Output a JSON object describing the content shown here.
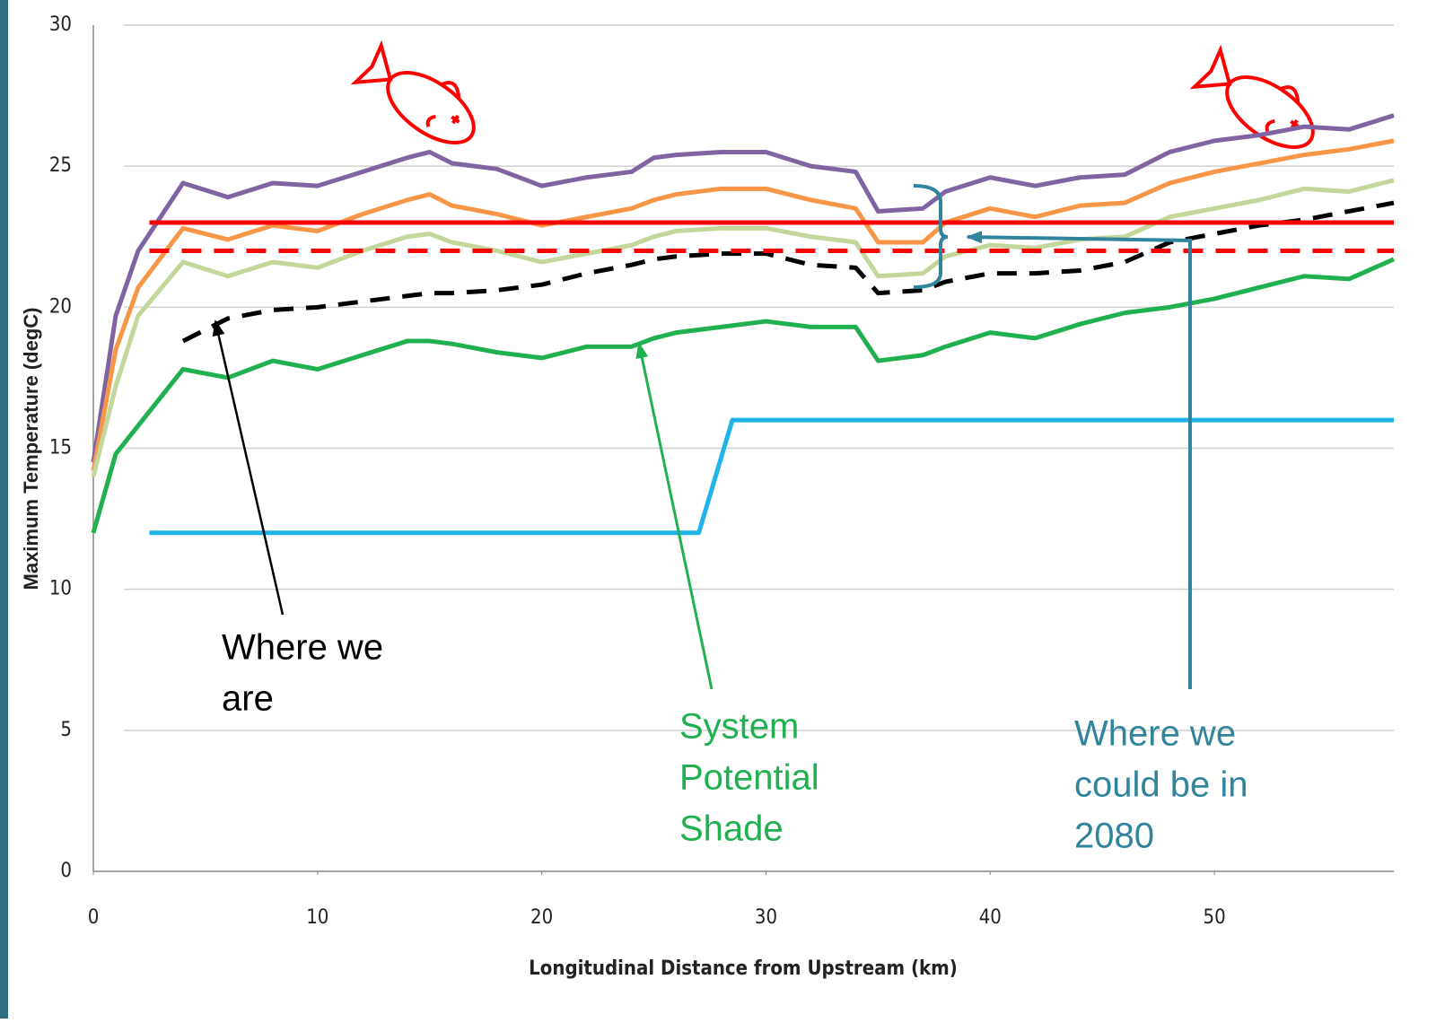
{
  "chart_data": {
    "type": "line",
    "x_label": "Longitudinal Distance from Upstream (km)",
    "y_label": "Maximum Temperature (degC)",
    "x": [
      0,
      1,
      2,
      4,
      6,
      8,
      10,
      12,
      14,
      15,
      16,
      18,
      20,
      22,
      24,
      25,
      26,
      28,
      30,
      32,
      34,
      35,
      37,
      38,
      40,
      42,
      44,
      46,
      48,
      50,
      52,
      54,
      56,
      58
    ],
    "series": [
      {
        "color": "#8064a2",
        "values": [
          14.5,
          19.7,
          22,
          24.4,
          23.9,
          24.4,
          24.3,
          24.8,
          25.3,
          25.5,
          25.1,
          24.9,
          24.3,
          24.6,
          24.8,
          25.3,
          25.4,
          25.5,
          25.5,
          25.0,
          24.8,
          23.4,
          23.5,
          24.1,
          24.6,
          24.3,
          24.6,
          24.7,
          25.5,
          25.9,
          26.1,
          26.4,
          26.3,
          26.8
        ]
      },
      {
        "color": "#f79646",
        "values": [
          14.2,
          18.5,
          20.7,
          22.8,
          22.4,
          22.9,
          22.7,
          23.3,
          23.8,
          24.0,
          23.6,
          23.3,
          22.9,
          23.2,
          23.5,
          23.8,
          24.0,
          24.2,
          24.2,
          23.8,
          23.5,
          22.3,
          22.3,
          23.0,
          23.5,
          23.2,
          23.6,
          23.7,
          24.4,
          24.8,
          25.1,
          25.4,
          25.6,
          25.9
        ]
      },
      {
        "color": "#c3d69b",
        "values": [
          14.0,
          17.2,
          19.7,
          21.6,
          21.1,
          21.6,
          21.4,
          22.0,
          22.5,
          22.6,
          22.3,
          22.0,
          21.6,
          21.9,
          22.2,
          22.5,
          22.7,
          22.8,
          22.8,
          22.5,
          22.3,
          21.1,
          21.2,
          21.8,
          22.2,
          22.1,
          22.4,
          22.5,
          23.2,
          23.5,
          23.8,
          24.2,
          24.1,
          24.5
        ]
      },
      {
        "color": "#000000",
        "dashed": true,
        "values": [
          null,
          null,
          null,
          18.8,
          19.6,
          19.9,
          20.0,
          20.2,
          20.4,
          20.5,
          20.5,
          20.6,
          20.8,
          21.2,
          21.5,
          21.7,
          21.8,
          21.9,
          21.9,
          21.5,
          21.4,
          20.5,
          20.6,
          20.9,
          21.2,
          21.2,
          21.3,
          21.6,
          22.3,
          22.6,
          22.9,
          23.1,
          23.4,
          23.7
        ]
      },
      {
        "color": "#20b050",
        "values": [
          12.0,
          14.8,
          15.8,
          17.8,
          17.5,
          18.1,
          17.8,
          18.3,
          18.8,
          18.8,
          18.7,
          18.4,
          18.2,
          18.6,
          18.6,
          18.9,
          19.1,
          19.3,
          19.5,
          19.3,
          19.3,
          18.1,
          18.3,
          18.6,
          19.1,
          18.9,
          19.4,
          19.8,
          20.0,
          20.3,
          20.7,
          21.1,
          21.0,
          21.7
        ]
      },
      {
        "color": "#1fb3e8",
        "x": [
          2.5,
          27,
          28.5,
          58
        ],
        "values": [
          12,
          12,
          16,
          16
        ]
      },
      {
        "color": "#ff0000",
        "x": [
          2.5,
          58
        ],
        "values": [
          23,
          23
        ]
      },
      {
        "color": "#ff0000",
        "dashed": true,
        "x": [
          2.5,
          58
        ],
        "values": [
          22,
          22
        ]
      }
    ],
    "xlim": [
      0,
      58
    ],
    "xticks": [
      0,
      10,
      20,
      30,
      40,
      50
    ],
    "ylim": [
      0,
      30
    ],
    "yticks": [
      0,
      5,
      10,
      15,
      20,
      25,
      30
    ],
    "grid": true,
    "annotations": [
      {
        "lines": [
          "Where we",
          "are"
        ],
        "color": "#000000"
      },
      {
        "lines": [
          "System",
          "Potential",
          "Shade"
        ],
        "color": "#20b050"
      },
      {
        "lines": [
          "Where we",
          "could be in",
          "2080"
        ],
        "color": "#31849b"
      }
    ]
  }
}
